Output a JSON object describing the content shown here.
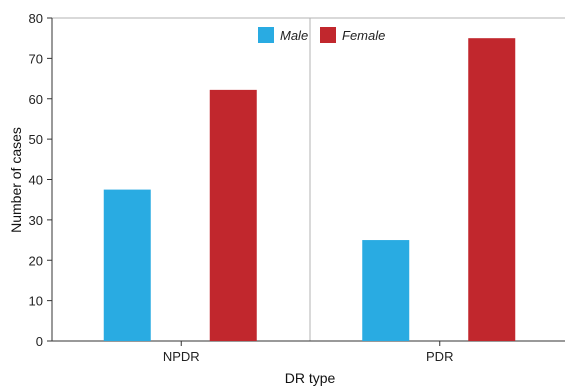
{
  "chart_data": {
    "type": "bar",
    "title": "",
    "xlabel": "DR type",
    "ylabel": "Number of cases",
    "categories": [
      "NPDR",
      "PDR"
    ],
    "series": [
      {
        "name": "Male",
        "values": [
          37.5,
          25
        ],
        "color": "#29abe2"
      },
      {
        "name": "Female",
        "values": [
          62.2,
          75
        ],
        "color": "#c1272d"
      }
    ],
    "ylim": [
      0,
      80
    ],
    "yticks": [
      0,
      10,
      20,
      30,
      40,
      50,
      60,
      70,
      80
    ],
    "grid": false,
    "legend": "top-center"
  }
}
